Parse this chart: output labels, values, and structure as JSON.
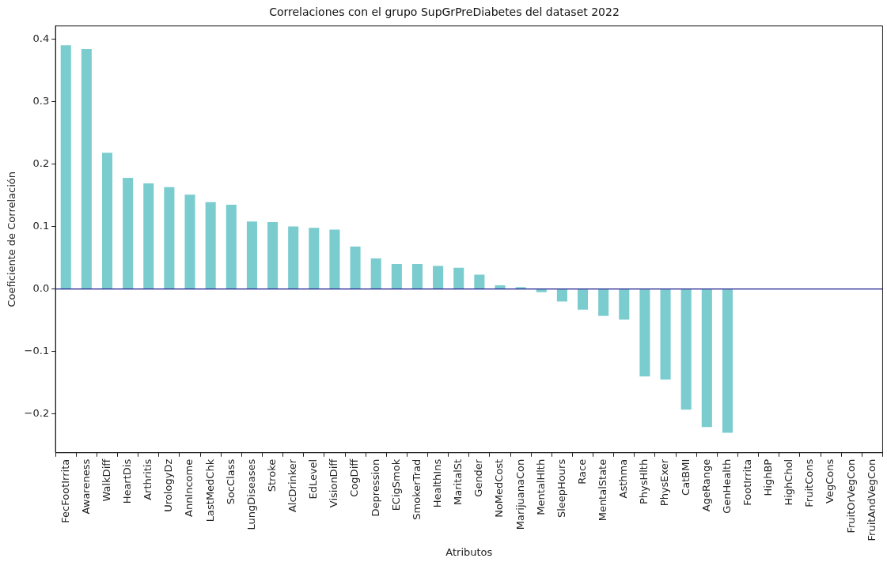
{
  "chart_data": {
    "type": "bar",
    "title": "Correlaciones con el grupo SupGrPreDiabetes del dataset 2022",
    "xlabel": "Atributos",
    "ylabel": "Coeficiente de Correlación",
    "categories": [
      "FecFootIrrita",
      "Awareness",
      "WalkDiff",
      "HeartDis",
      "Arthritis",
      "UrologyDz",
      "AnnIncome",
      "LastMedChk",
      "SocClass",
      "LungDiseases",
      "Stroke",
      "AlcDrinker",
      "EdLevel",
      "VisionDiff",
      "CogDiff",
      "Depression",
      "ECigSmok",
      "SmokerTrad",
      "HealthIns",
      "MaritalSt",
      "Gender",
      "NoMedCost",
      "MarijuanaCon",
      "MentalHlth",
      "SleepHours",
      "Race",
      "MentalState",
      "Asthma",
      "PhysHlth",
      "PhysExer",
      "CatBMI",
      "AgeRange",
      "GenHealth",
      "FootIrrita",
      "HighBP",
      "HighChol",
      "FruitCons",
      "VegCons",
      "FruitOrVegCon",
      "FruitAndVegCon"
    ],
    "values": [
      0.39,
      0.384,
      0.218,
      0.178,
      0.169,
      0.163,
      0.151,
      0.139,
      0.135,
      0.108,
      0.107,
      0.1,
      0.098,
      0.095,
      0.068,
      0.049,
      0.04,
      0.04,
      0.037,
      0.034,
      0.023,
      0.006,
      0.003,
      -0.005,
      -0.02,
      -0.033,
      -0.043,
      -0.049,
      -0.14,
      -0.145,
      -0.193,
      -0.221,
      -0.23,
      null,
      null,
      null,
      null,
      null,
      null,
      null
    ],
    "color": "#7accce",
    "ylim": [
      -0.262,
      0.421
    ],
    "yticks": [
      {
        "value": -0.2,
        "label": "−0.2"
      },
      {
        "value": -0.1,
        "label": "−0.1"
      },
      {
        "value": 0,
        "label": "0.0"
      },
      {
        "value": 0.1,
        "label": "0.1"
      },
      {
        "value": 0.2,
        "label": "0.2"
      },
      {
        "value": 0.3,
        "label": "0.3"
      },
      {
        "value": 0.4,
        "label": "0.4"
      }
    ],
    "ref_lines": [
      {
        "axis": "y",
        "value": 0,
        "color": "#1a1a8c"
      }
    ],
    "grid": false,
    "legend": false
  }
}
